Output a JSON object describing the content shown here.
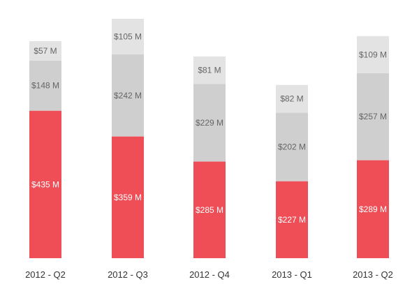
{
  "chart_data": {
    "type": "bar",
    "stacked": true,
    "categories": [
      "2012 - Q2",
      "2012 - Q3",
      "2012 - Q4",
      "2013 - Q1",
      "2013 - Q2"
    ],
    "series": [
      {
        "values": [
          435,
          359,
          285,
          227,
          289
        ],
        "labels": [
          "$435 M",
          "$359 M",
          "$285 M",
          "$227 M",
          "$289 M"
        ],
        "color": "#f04e57",
        "label_color": "#ffffff"
      },
      {
        "values": [
          148,
          242,
          229,
          202,
          257
        ],
        "labels": [
          "$148 M",
          "$242 M",
          "$229 M",
          "$202 M",
          "$257 M"
        ],
        "color": "#cfcfcf",
        "label_color": "#666666"
      },
      {
        "values": [
          57,
          105,
          81,
          82,
          109
        ],
        "labels": [
          "$57 M",
          "$105 M",
          "$81 M",
          "$82 M",
          "$109 M"
        ],
        "color": "#e3e3e3",
        "label_color": "#666666"
      }
    ],
    "ylim": [
      0,
      706
    ],
    "grid": false,
    "legend": "none"
  }
}
